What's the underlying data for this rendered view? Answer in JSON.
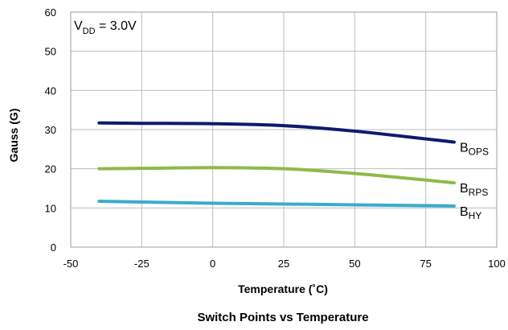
{
  "chart_data": {
    "type": "line",
    "title": "Switch Points vs Temperature",
    "xlabel": "Temperature (˚C)",
    "ylabel": "Gauss (G)",
    "xlim": [
      -50,
      100
    ],
    "ylim": [
      0,
      60
    ],
    "x_ticks": [
      -50,
      -25,
      0,
      25,
      50,
      75,
      100
    ],
    "y_ticks": [
      0,
      10,
      20,
      30,
      40,
      50,
      60
    ],
    "grid": true,
    "annotation": {
      "main": "V",
      "sub": "DD",
      "rest": " = 3.0V"
    },
    "series": [
      {
        "name": "BOPS",
        "label_main": "B",
        "label_sub": "OPS",
        "color": "#0d1a6e",
        "x": [
          -40,
          -25,
          0,
          25,
          50,
          85
        ],
        "y": [
          31.7,
          31.6,
          31.5,
          31.0,
          29.6,
          26.8
        ]
      },
      {
        "name": "BRPS",
        "label_main": "B",
        "label_sub": "RPS",
        "color": "#8fb94b",
        "x": [
          -40,
          -25,
          0,
          25,
          50,
          85
        ],
        "y": [
          20.0,
          20.1,
          20.3,
          20.0,
          18.8,
          16.4
        ]
      },
      {
        "name": "BHY",
        "label_main": "B",
        "label_sub": "HY",
        "color": "#3aaccc",
        "x": [
          -40,
          -25,
          0,
          25,
          50,
          85
        ],
        "y": [
          11.7,
          11.5,
          11.2,
          11.0,
          10.8,
          10.5
        ]
      }
    ]
  }
}
